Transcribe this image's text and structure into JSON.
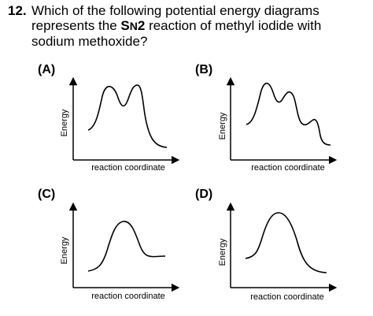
{
  "question": {
    "number": "12.",
    "line1": "Which of the following potential energy diagrams",
    "line2_pre": "represents the ",
    "line2_s": "S",
    "line2_n": "N",
    "line2_2": "2",
    "line2_post": " reaction of methyl iodide with",
    "line3": "sodium methoxide?"
  },
  "panels": [
    {
      "label": "(A)",
      "xlabel": "reaction coordinate",
      "ylabel": "Energy"
    },
    {
      "label": "(B)",
      "xlabel": "reaction coordinate",
      "ylabel": "Energy"
    },
    {
      "label": "(C)",
      "xlabel": "reaction coordinate",
      "ylabel": "Energy"
    },
    {
      "label": "(D)",
      "xlabel": "reaction coordinate",
      "ylabel": "Energy"
    }
  ]
}
